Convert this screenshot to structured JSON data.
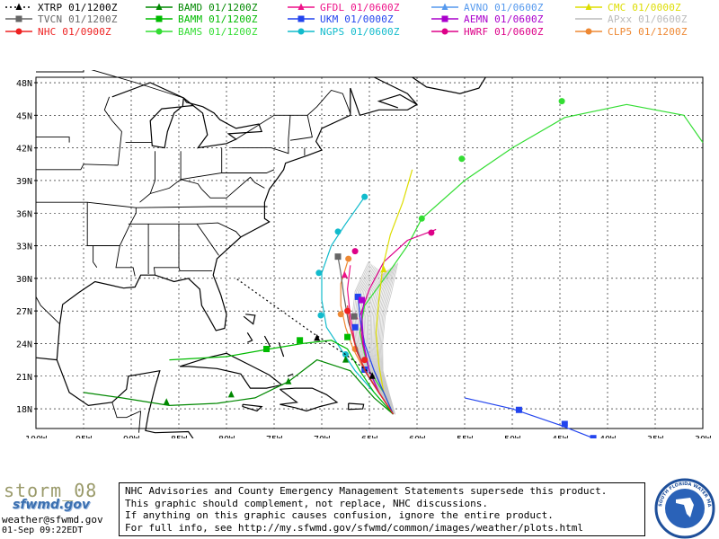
{
  "legend": [
    {
      "id": "xtrp",
      "label": "XTRP  01/1200Z",
      "color": "#000000",
      "marker": "triangle",
      "dash": "2,3"
    },
    {
      "id": "bamd",
      "label": "BAMD 01/1200Z",
      "color": "#008800",
      "marker": "triangle",
      "dash": ""
    },
    {
      "id": "gfdl",
      "label": "GFDL  01/0600Z",
      "color": "#ee1188",
      "marker": "triangle",
      "dash": ""
    },
    {
      "id": "avno",
      "label": "AVNO 01/0600Z",
      "color": "#5599ee",
      "marker": "triangle",
      "dash": ""
    },
    {
      "id": "cmc",
      "label": "CMC 01/0000Z",
      "color": "#dddd00",
      "marker": "triangle",
      "dash": ""
    },
    {
      "id": "tvcn",
      "label": "TVCN  01/1200Z",
      "color": "#666666",
      "marker": "square",
      "dash": ""
    },
    {
      "id": "bamm",
      "label": "BAMM 01/1200Z",
      "color": "#00bb00",
      "marker": "square",
      "dash": ""
    },
    {
      "id": "ukm",
      "label": "UKM   01/0000Z",
      "color": "#2244ee",
      "marker": "square",
      "dash": ""
    },
    {
      "id": "aemn",
      "label": "AEMN 01/0600Z",
      "color": "#aa00cc",
      "marker": "square",
      "dash": ""
    },
    {
      "id": "apxx",
      "label": "APxx 01/0600Z",
      "color": "#bbbbbb",
      "marker": "none",
      "dash": ""
    },
    {
      "id": "nhc",
      "label": "NHC  01/0900Z",
      "color": "#ee2222",
      "marker": "circle",
      "dash": ""
    },
    {
      "id": "bams",
      "label": "BAMS 01/1200Z",
      "color": "#33dd33",
      "marker": "circle",
      "dash": ""
    },
    {
      "id": "ngps",
      "label": "NGPS 01/0600Z",
      "color": "#11bbcc",
      "marker": "circle",
      "dash": ""
    },
    {
      "id": "hwrf",
      "label": "HWRF 01/0600Z",
      "color": "#dd0088",
      "marker": "circle",
      "dash": ""
    },
    {
      "id": "clp5",
      "label": "CLP5 01/1200Z",
      "color": "#ee8833",
      "marker": "circle",
      "dash": ""
    }
  ],
  "map": {
    "lat_labels": [
      "48N",
      "45N",
      "42N",
      "39N",
      "36N",
      "33N",
      "30N",
      "27N",
      "24N",
      "21N",
      "18N"
    ],
    "lon_labels": [
      "100W",
      "95W",
      "90W",
      "85W",
      "80W",
      "75W",
      "70W",
      "65W",
      "60W",
      "55W",
      "50W",
      "45W",
      "40W",
      "35W",
      "30W"
    ],
    "tracks": [
      {
        "id": "bams",
        "color": "#33dd33",
        "marker": "circle",
        "pts": [
          [
            -62.5,
            17.5
          ],
          [
            -63.5,
            19.5
          ],
          [
            -65,
            21.5
          ],
          [
            -65.5,
            23
          ],
          [
            -66,
            25
          ],
          [
            -65.5,
            27.5
          ],
          [
            -63,
            30.5
          ],
          [
            -61,
            33
          ],
          [
            -59.5,
            35.5
          ],
          [
            -55,
            39
          ],
          [
            -50,
            42
          ],
          [
            -44.5,
            44.8
          ],
          [
            -38,
            46
          ],
          [
            -32,
            45
          ],
          [
            -30,
            42.5
          ]
        ],
        "mk": [
          [
            -59.5,
            35.5
          ],
          [
            -55.3,
            41
          ],
          [
            -44.8,
            46.3
          ]
        ]
      },
      {
        "id": "hwrf",
        "color": "#dd0088",
        "marker": "circle",
        "pts": [
          [
            -62.5,
            17.5
          ],
          [
            -64,
            19.5
          ],
          [
            -65,
            21.5
          ],
          [
            -65.7,
            24
          ],
          [
            -66,
            26.5
          ],
          [
            -65,
            29
          ],
          [
            -63.5,
            31.5
          ],
          [
            -61,
            33.5
          ],
          [
            -58,
            34.5
          ]
        ],
        "mk": [
          [
            -66.5,
            32.5
          ],
          [
            -58.5,
            34.2
          ]
        ]
      },
      {
        "id": "ngps",
        "color": "#11bbcc",
        "marker": "circle",
        "pts": [
          [
            -62.5,
            17.5
          ],
          [
            -64.5,
            19.5
          ],
          [
            -66.5,
            21.5
          ],
          [
            -68,
            23.5
          ],
          [
            -69.5,
            25.5
          ],
          [
            -70,
            28
          ],
          [
            -70,
            30.5
          ],
          [
            -69,
            33
          ],
          [
            -67.5,
            35
          ],
          [
            -65.5,
            37.5
          ]
        ],
        "mk": [
          [
            -65.5,
            37.5
          ],
          [
            -68.3,
            34.3
          ],
          [
            -70.3,
            30.5
          ],
          [
            -70.1,
            26.6
          ],
          [
            -67.5,
            23
          ]
        ]
      },
      {
        "id": "clp5",
        "color": "#ee8833",
        "marker": "circle",
        "pts": [
          [
            -62.5,
            17.5
          ],
          [
            -64,
            19.5
          ],
          [
            -65.5,
            21.5
          ],
          [
            -66.7,
            23.5
          ],
          [
            -67.5,
            25.5
          ],
          [
            -68,
            27.5
          ],
          [
            -68,
            29.5
          ],
          [
            -67.3,
            31.5
          ]
        ],
        "mk": [
          [
            -66.5,
            23.5
          ],
          [
            -68,
            26.7
          ],
          [
            -67.2,
            31.8
          ]
        ]
      },
      {
        "id": "cmc",
        "color": "#dddd00",
        "marker": "triangle",
        "pts": [
          [
            -62.5,
            17.5
          ],
          [
            -63.5,
            19.5
          ],
          [
            -64,
            22
          ],
          [
            -64.3,
            25
          ],
          [
            -64,
            28
          ],
          [
            -63.6,
            31
          ],
          [
            -62.8,
            34
          ],
          [
            -61.5,
            37
          ],
          [
            -60.5,
            40
          ]
        ],
        "mk": [
          [
            -63.5,
            30.8
          ]
        ]
      },
      {
        "id": "gfdl",
        "color": "#ee1188",
        "marker": "triangle",
        "pts": [
          [
            -62.5,
            17.5
          ],
          [
            -64,
            19.5
          ],
          [
            -65.5,
            21.5
          ],
          [
            -66.5,
            24
          ],
          [
            -67,
            26.5
          ],
          [
            -67.3,
            29
          ],
          [
            -67,
            31.2
          ]
        ],
        "mk": [
          [
            -67.6,
            30.3
          ],
          [
            -66.5,
            26.5
          ]
        ]
      },
      {
        "id": "ukm",
        "color": "#2244ee",
        "marker": "square",
        "pts": [
          [
            -62.5,
            17.5
          ],
          [
            -63.5,
            19.5
          ],
          [
            -64.5,
            21.5
          ],
          [
            -65.5,
            24
          ],
          [
            -66,
            26.5
          ],
          [
            -66.2,
            28.5
          ]
        ],
        "mk": [
          [
            -65.5,
            21.6
          ],
          [
            -66.2,
            28.3
          ],
          [
            -66.5,
            25.5
          ]
        ]
      },
      {
        "id": "ukm2",
        "color": "#2244ee",
        "marker": "square",
        "pts": [
          [
            -55,
            19
          ],
          [
            -50,
            18
          ],
          [
            -45,
            16.5
          ],
          [
            -41.5,
            15.3
          ],
          [
            -40.5,
            14.7
          ]
        ],
        "mk": [
          [
            -49.3,
            17.9
          ],
          [
            -44.5,
            16.6
          ],
          [
            -41.5,
            15.3
          ]
        ]
      },
      {
        "id": "aemn",
        "color": "#aa00cc",
        "marker": "square",
        "pts": [
          [
            -62.5,
            17.5
          ],
          [
            -64,
            19.5
          ],
          [
            -65,
            21.5
          ],
          [
            -65.6,
            24
          ],
          [
            -65.8,
            26.5
          ],
          [
            -65.5,
            28.2
          ]
        ],
        "mk": [
          [
            -65.8,
            28
          ]
        ]
      },
      {
        "id": "tvcn",
        "color": "#666666",
        "marker": "square",
        "pts": [
          [
            -62.5,
            17.5
          ],
          [
            -64,
            19.5
          ],
          [
            -65.5,
            21.5
          ],
          [
            -66.3,
            23.5
          ],
          [
            -67.2,
            26
          ],
          [
            -67.7,
            28.5
          ],
          [
            -68,
            30.5
          ],
          [
            -68.3,
            32
          ]
        ],
        "mk": [
          [
            -66.6,
            26.5
          ],
          [
            -68.3,
            32
          ]
        ]
      },
      {
        "id": "bamm",
        "color": "#00bb00",
        "marker": "square",
        "pts": [
          [
            -62.5,
            17.5
          ],
          [
            -64.5,
            19.5
          ],
          [
            -66,
            21.5
          ],
          [
            -67.3,
            23.5
          ],
          [
            -69,
            24.3
          ],
          [
            -72,
            24
          ],
          [
            -75.5,
            23.5
          ],
          [
            -80,
            22.8
          ],
          [
            -86,
            22.5
          ]
        ],
        "mk": [
          [
            -72.3,
            24.3
          ],
          [
            -75.8,
            23.5
          ],
          [
            -67.3,
            24.6
          ]
        ]
      },
      {
        "id": "bamd",
        "color": "#008800",
        "marker": "triangle",
        "pts": [
          [
            -62.5,
            17.5
          ],
          [
            -64.5,
            19
          ],
          [
            -67,
            21.5
          ],
          [
            -70.5,
            22.5
          ],
          [
            -73.5,
            20.5
          ],
          [
            -77,
            19
          ],
          [
            -81,
            18.5
          ],
          [
            -86,
            18.3
          ],
          [
            -91,
            19
          ],
          [
            -95,
            19.5
          ]
        ],
        "mk": [
          [
            -67.5,
            22.5
          ],
          [
            -73.5,
            20.5
          ],
          [
            -79.5,
            19.3
          ],
          [
            -86.3,
            18.6
          ]
        ]
      },
      {
        "id": "nhc",
        "color": "#ee2222",
        "marker": "circle",
        "pts": [
          [
            -62.5,
            17.5
          ],
          [
            -64,
            19.5
          ],
          [
            -65.3,
            21.3
          ],
          [
            -66.3,
            23.2
          ],
          [
            -67,
            25.5
          ],
          [
            -67.3,
            27.5
          ]
        ],
        "mk": [
          [
            -65.5,
            22.5
          ],
          [
            -67.3,
            27
          ]
        ]
      },
      {
        "id": "xtrp",
        "color": "#000000",
        "marker": "triangle",
        "pts": [
          [
            -64.5,
            21
          ],
          [
            -67.5,
            23
          ],
          [
            -71,
            25
          ],
          [
            -75,
            27.5
          ],
          [
            -79,
            30
          ]
        ],
        "mk": [
          [
            -64.7,
            21
          ],
          [
            -70.5,
            24.5
          ]
        ]
      }
    ]
  },
  "bottom": {
    "storm": "storm_08",
    "logo_text": "sfwmd.gov",
    "email": "weather@sfwmd.gov",
    "updated": "01-Sep 09:22EDT",
    "disclaimer": [
      "NHC Advisories and County Emergency Management Statements supersede this product.",
      "This graphic should complement, not replace, NHC discussions.",
      "If anything on this graphic causes confusion, ignore the entire product.",
      "For full info, see  http://my.sfwmd.gov/sfwmd/common/images/weather/plots.html"
    ],
    "seal_text": "SOUTH FLORIDA WATER MANAGEMENT DISTRICT"
  }
}
